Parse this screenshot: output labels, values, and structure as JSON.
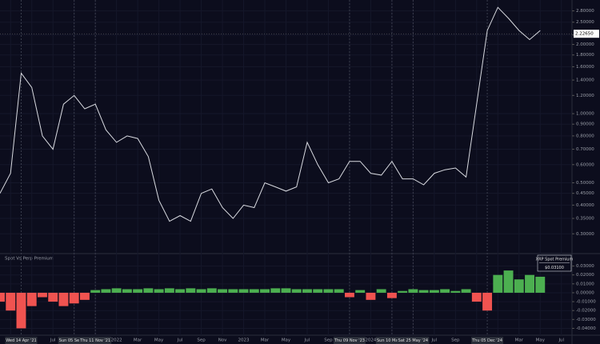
{
  "chart_data": [
    {
      "type": "line",
      "log_scale": true,
      "x": [
        "2021-02",
        "2021-03",
        "2021-04",
        "2021-05",
        "2021-06",
        "2021-07",
        "2021-08",
        "2021-09",
        "2021-10",
        "2021-11",
        "2021-12",
        "2022-01",
        "2022-02",
        "2022-03",
        "2022-04",
        "2022-05",
        "2022-06",
        "2022-07",
        "2022-08",
        "2022-09",
        "2022-10",
        "2022-11",
        "2022-12",
        "2023-01",
        "2023-02",
        "2023-03",
        "2023-04",
        "2023-05",
        "2023-06",
        "2023-07",
        "2023-08",
        "2023-09",
        "2023-10",
        "2023-11",
        "2023-12",
        "2024-01",
        "2024-02",
        "2024-03",
        "2024-04",
        "2024-05",
        "2024-06",
        "2024-07",
        "2024-08",
        "2024-09",
        "2024-10",
        "2024-11",
        "2024-12",
        "2025-01",
        "2025-02",
        "2025-03",
        "2025-04",
        "2025-05"
      ],
      "series": [
        {
          "color": "#d8dae0",
          "values": [
            0.45,
            0.55,
            1.5,
            1.3,
            0.8,
            0.7,
            1.1,
            1.2,
            1.05,
            1.1,
            0.85,
            0.75,
            0.8,
            0.78,
            0.65,
            0.42,
            0.34,
            0.36,
            0.34,
            0.45,
            0.47,
            0.39,
            0.35,
            0.4,
            0.39,
            0.5,
            0.48,
            0.46,
            0.48,
            0.75,
            0.6,
            0.5,
            0.52,
            0.62,
            0.62,
            0.55,
            0.54,
            0.62,
            0.52,
            0.52,
            0.49,
            0.55,
            0.57,
            0.58,
            0.53,
            1.1,
            2.3,
            2.9,
            2.6,
            2.3,
            2.1,
            2.3
          ]
        }
      ],
      "ylim": [
        0.25,
        3.0
      ],
      "yticks": [
        {
          "value": 2.8,
          "label": "2.80000"
        },
        {
          "value": 2.5,
          "label": "2.50000"
        },
        {
          "value": 2.2,
          "label": "2.20000"
        },
        {
          "value": 2.0,
          "label": "2.00000"
        },
        {
          "value": 1.8,
          "label": "1.80000"
        },
        {
          "value": 1.6,
          "label": "1.60000"
        },
        {
          "value": 1.4,
          "label": "1.40000"
        },
        {
          "value": 1.2,
          "label": "1.20000"
        },
        {
          "value": 1.0,
          "label": "1.00000"
        },
        {
          "value": 0.9,
          "label": "0.90000"
        },
        {
          "value": 0.8,
          "label": "0.80000"
        },
        {
          "value": 0.7,
          "label": "0.70000"
        },
        {
          "value": 0.6,
          "label": "0.60000"
        },
        {
          "value": 0.5,
          "label": "0.50000"
        },
        {
          "value": 0.45,
          "label": "0.45000"
        },
        {
          "value": 0.4,
          "label": "0.40000"
        },
        {
          "value": 0.35,
          "label": "0.35000"
        },
        {
          "value": 0.3,
          "label": "0.30000"
        }
      ],
      "last_price": {
        "value": 2.2265,
        "label": "2.22650"
      },
      "markers": [
        {
          "x": "2021-04",
          "label": "Wed 14 Apr '21"
        },
        {
          "x": "2021-09",
          "label": "Sun 05 Sep '21"
        },
        {
          "x": "2021-11",
          "label": "Thu 11 Nov '21"
        },
        {
          "x": "2023-11",
          "label": "Thu 09 Nov '23"
        },
        {
          "x": "2024-03",
          "label": "Sun 10 Mar '24"
        },
        {
          "x": "2024-05",
          "label": "Sat 25 May '24"
        },
        {
          "x": "2024-12",
          "label": "Thu 05 Dec '24"
        }
      ]
    },
    {
      "type": "bar",
      "title": "Spot Vs Perp Premium",
      "x": [
        "2021-02",
        "2021-03",
        "2021-04",
        "2021-05",
        "2021-06",
        "2021-07",
        "2021-08",
        "2021-09",
        "2021-10",
        "2021-11",
        "2021-12",
        "2022-01",
        "2022-02",
        "2022-03",
        "2022-04",
        "2022-05",
        "2022-06",
        "2022-07",
        "2022-08",
        "2022-09",
        "2022-10",
        "2022-11",
        "2022-12",
        "2023-01",
        "2023-02",
        "2023-03",
        "2023-04",
        "2023-05",
        "2023-06",
        "2023-07",
        "2023-08",
        "2023-09",
        "2023-10",
        "2023-11",
        "2023-12",
        "2024-01",
        "2024-02",
        "2024-03",
        "2024-04",
        "2024-05",
        "2024-06",
        "2024-07",
        "2024-08",
        "2024-09",
        "2024-10",
        "2024-11",
        "2024-12",
        "2025-01",
        "2025-02",
        "2025-03",
        "2025-04",
        "2025-05"
      ],
      "values": [
        -0.01,
        -0.02,
        -0.04,
        -0.015,
        -0.005,
        -0.01,
        -0.015,
        -0.012,
        -0.008,
        0.003,
        0.004,
        0.005,
        0.004,
        0.004,
        0.005,
        0.004,
        0.005,
        0.004,
        0.005,
        0.004,
        0.005,
        0.004,
        0.004,
        0.004,
        0.004,
        0.004,
        0.005,
        0.005,
        0.004,
        0.004,
        0.004,
        0.004,
        0.004,
        -0.005,
        0.003,
        -0.008,
        0.004,
        -0.006,
        0.002,
        0.004,
        0.003,
        0.003,
        0.004,
        0.002,
        0.004,
        -0.01,
        -0.02,
        0.02,
        0.025,
        0.015,
        0.02,
        0.018
      ],
      "colors": {
        "positive": "#4caf50",
        "negative": "#f05350"
      },
      "ylim": [
        -0.045,
        0.035
      ],
      "yticks": [
        {
          "value": 0.03,
          "label": "0.03000"
        },
        {
          "value": 0.02,
          "label": "0.02000"
        },
        {
          "value": 0.01,
          "label": "0.01000"
        },
        {
          "value": 0,
          "label": "0.00000"
        },
        {
          "value": -0.01,
          "label": "-0.01000"
        },
        {
          "value": -0.02,
          "label": "-0.02000"
        },
        {
          "value": -0.03,
          "label": "-0.03000"
        },
        {
          "value": -0.04,
          "label": "-0.04000"
        }
      ],
      "premium_box": {
        "title": "XRP Spot Premium",
        "value": 0.031,
        "label": "$0.03100"
      },
      "xlim": [
        "2021-02",
        "2025-08"
      ],
      "xticks": [
        {
          "value": "2021-03",
          "label": "Mar"
        },
        {
          "value": "2021-05",
          "label": "May"
        },
        {
          "value": "2021-07",
          "label": "Jul"
        },
        {
          "value": "2021-09",
          "label": "Sep"
        },
        {
          "value": "2021-11",
          "label": "Nov"
        },
        {
          "value": "2022-01",
          "label": "2022"
        },
        {
          "value": "2022-03",
          "label": "Mar"
        },
        {
          "value": "2022-05",
          "label": "May"
        },
        {
          "value": "2022-07",
          "label": "Jul"
        },
        {
          "value": "2022-09",
          "label": "Sep"
        },
        {
          "value": "2022-11",
          "label": "Nov"
        },
        {
          "value": "2023-01",
          "label": "2023"
        },
        {
          "value": "2023-03",
          "label": "Mar"
        },
        {
          "value": "2023-05",
          "label": "May"
        },
        {
          "value": "2023-07",
          "label": "Jul"
        },
        {
          "value": "2023-09",
          "label": "Sep"
        },
        {
          "value": "2023-11",
          "label": "Nov"
        },
        {
          "value": "2024-01",
          "label": "2024"
        },
        {
          "value": "2024-03",
          "label": "Mar"
        },
        {
          "value": "2024-05",
          "label": "May"
        },
        {
          "value": "2024-07",
          "label": "Jul"
        },
        {
          "value": "2024-09",
          "label": "Sep"
        },
        {
          "value": "2024-11",
          "label": "Nov"
        },
        {
          "value": "2025-01",
          "label": "2025"
        },
        {
          "value": "2025-03",
          "label": "Mar"
        },
        {
          "value": "2025-05",
          "label": "May"
        },
        {
          "value": "2025-07",
          "label": "Jul"
        }
      ]
    }
  ]
}
